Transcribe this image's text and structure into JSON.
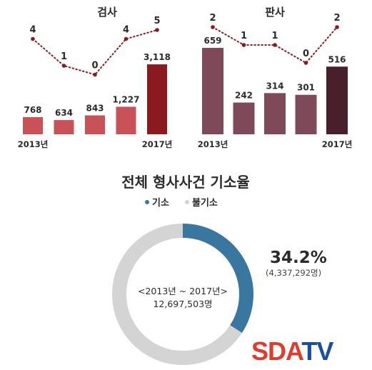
{
  "chart_data": [
    {
      "type": "bar",
      "title": "검사",
      "categories": [
        "2013년",
        "",
        "",
        "",
        "2017년"
      ],
      "values": [
        768,
        634,
        843,
        1227,
        3118
      ],
      "value_labels": [
        "768",
        "634",
        "843",
        "1,227",
        "3,118"
      ],
      "line_series": {
        "values": [
          4,
          1,
          0,
          4,
          5
        ],
        "labels": [
          "4",
          "1",
          "0",
          "4",
          "5"
        ]
      },
      "colors": {
        "bars": [
          "#c85257",
          "#c85257",
          "#c85257",
          "#c85257",
          "#8b1a1e"
        ],
        "line": "#8b1a1e"
      }
    },
    {
      "type": "bar",
      "title": "판사",
      "categories": [
        "2013년",
        "",
        "",
        "",
        "2017년"
      ],
      "values": [
        659,
        242,
        314,
        301,
        516
      ],
      "value_labels": [
        "659",
        "242",
        "314",
        "301",
        "516"
      ],
      "line_series": {
        "values": [
          2,
          1,
          1,
          0,
          2
        ],
        "labels": [
          "2",
          "1",
          "1",
          "0",
          "2"
        ]
      },
      "colors": {
        "bars": [
          "#7e4a5a",
          "#7e4a5a",
          "#7e4a5a",
          "#7e4a5a",
          "#4a1f2c"
        ],
        "line": "#8b1a1e"
      }
    },
    {
      "type": "pie",
      "title": "전체 형사사건 기소율",
      "legend": [
        {
          "label": "기소",
          "color": "#3a77a0"
        },
        {
          "label": "불기소",
          "color": "#d4d4d4"
        }
      ],
      "values": [
        34.2,
        65.8
      ],
      "highlight": {
        "percent": "34.2%",
        "count": "(4,337,292명)"
      },
      "center": {
        "line1": "<2013년 ~ 2017년>",
        "line2": "12,697,503명"
      }
    }
  ],
  "brand": {
    "sda": "SDA",
    "tv": "TV",
    "colors": {
      "sda": "#e23a2c",
      "tv": "#1a4fa0"
    }
  }
}
